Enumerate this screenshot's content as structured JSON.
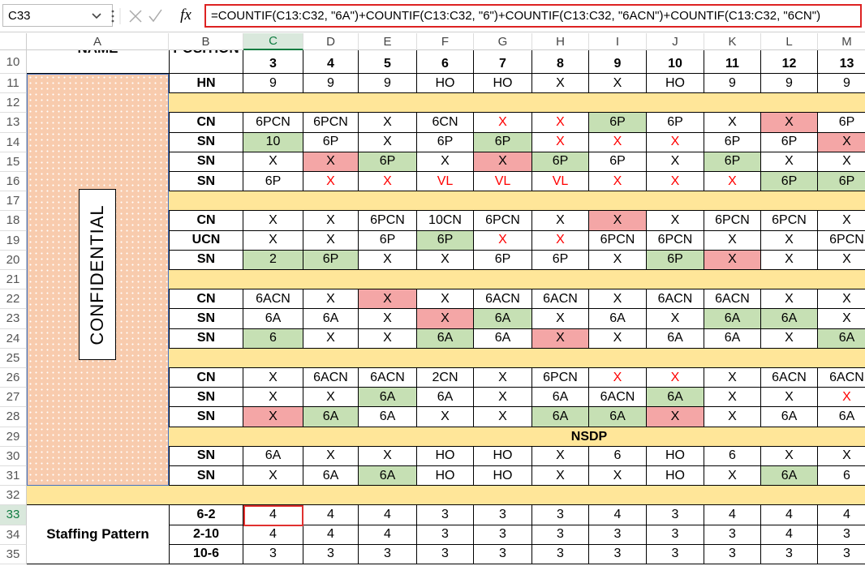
{
  "formula_bar": {
    "name_box": "C33",
    "fx": "fx",
    "formula": "=COUNTIF(C13:C32, \"6A\")+COUNTIF(C13:C32, \"6\")+COUNTIF(C13:C32, \"6ACN\")+COUNTIF(C13:C32, \"6CN\")"
  },
  "column_headers": [
    "A",
    "B",
    "C",
    "D",
    "E",
    "F",
    "G",
    "H",
    "I",
    "J",
    "K",
    "L",
    "M"
  ],
  "colors": {
    "green": "#c6e0b4",
    "red_fill": "#f4a6a6",
    "red_text": "#ff0000",
    "band": "#ffe699",
    "confidential_bg": "#f8cbad",
    "selected": "#e0312f"
  },
  "sheet": {
    "header_row": 10,
    "name_header": "NAME",
    "position_header": "POSITION",
    "day_numbers": [
      3,
      4,
      5,
      6,
      7,
      8,
      9,
      10,
      11,
      12,
      13
    ],
    "confidential": "CONFIDENTIAL",
    "staffing_label": "Staffing Pattern",
    "selected_cell": "C33",
    "rows": [
      {
        "row": 11,
        "position": "HN",
        "cells": [
          "9",
          "9",
          "9",
          "HO",
          "HO",
          "X",
          "X",
          "HO",
          "9",
          "9",
          "9"
        ]
      },
      {
        "row": 12,
        "band": true
      },
      {
        "row": 13,
        "position": "CN",
        "cells": [
          "6PCN",
          "6PCN",
          "X",
          "6CN",
          "X",
          "X",
          "6P",
          "6P",
          "X",
          "X",
          "6P"
        ],
        "green": [
          6
        ],
        "red_fill": [
          9
        ],
        "red_text": [
          4,
          5
        ]
      },
      {
        "row": 14,
        "position": "SN",
        "cells": [
          "10",
          "6P",
          "X",
          "6P",
          "6P",
          "X",
          "X",
          "X",
          "6P",
          "6P",
          "X"
        ],
        "green": [
          0,
          4
        ],
        "red_fill": [
          10
        ],
        "red_text": [
          5,
          6,
          7
        ]
      },
      {
        "row": 15,
        "position": "SN",
        "cells": [
          "X",
          "X",
          "6P",
          "X",
          "X",
          "6P",
          "6P",
          "X",
          "6P",
          "X",
          "X"
        ],
        "green": [
          2,
          5,
          8
        ],
        "red_fill": [
          1,
          4
        ]
      },
      {
        "row": 16,
        "position": "SN",
        "cells": [
          "6P",
          "X",
          "X",
          "VL",
          "VL",
          "VL",
          "X",
          "X",
          "X",
          "6P",
          "6P"
        ],
        "green": [
          9,
          10
        ],
        "red_text": [
          1,
          2,
          3,
          4,
          5,
          6,
          7,
          8
        ]
      },
      {
        "row": 17,
        "band": true
      },
      {
        "row": 18,
        "position": "CN",
        "cells": [
          "X",
          "X",
          "6PCN",
          "10CN",
          "6PCN",
          "X",
          "X",
          "X",
          "6PCN",
          "6PCN",
          "X"
        ],
        "red_fill": [
          6
        ]
      },
      {
        "row": 19,
        "position": "UCN",
        "cells": [
          "X",
          "X",
          "6P",
          "6P",
          "X",
          "X",
          "6PCN",
          "6PCN",
          "X",
          "X",
          "6PCN"
        ],
        "green": [
          3
        ],
        "red_text": [
          4,
          5
        ]
      },
      {
        "row": 20,
        "position": "SN",
        "cells": [
          "2",
          "6P",
          "X",
          "X",
          "6P",
          "6P",
          "X",
          "6P",
          "X",
          "X",
          "X"
        ],
        "green": [
          0,
          1,
          7
        ],
        "red_fill": [
          8
        ]
      },
      {
        "row": 21,
        "band": true
      },
      {
        "row": 22,
        "position": "CN",
        "cells": [
          "6ACN",
          "X",
          "X",
          "X",
          "6ACN",
          "6ACN",
          "X",
          "6ACN",
          "6ACN",
          "X",
          "X"
        ],
        "red_fill": [
          2
        ]
      },
      {
        "row": 23,
        "position": "SN",
        "cells": [
          "6A",
          "6A",
          "X",
          "X",
          "6A",
          "X",
          "6A",
          "X",
          "6A",
          "6A",
          "X"
        ],
        "green": [
          4,
          8,
          9
        ],
        "red_fill": [
          3
        ]
      },
      {
        "row": 24,
        "position": "SN",
        "cells": [
          "6",
          "X",
          "X",
          "6A",
          "6A",
          "X",
          "X",
          "6A",
          "6A",
          "X",
          "6A"
        ],
        "green": [
          0,
          3,
          10
        ],
        "red_fill": [
          5
        ]
      },
      {
        "row": 25,
        "band": true
      },
      {
        "row": 26,
        "position": "CN",
        "cells": [
          "X",
          "6ACN",
          "6ACN",
          "2CN",
          "X",
          "6PCN",
          "X",
          "X",
          "X",
          "6ACN",
          "6ACN"
        ],
        "red_text": [
          6,
          7
        ]
      },
      {
        "row": 27,
        "position": "SN",
        "cells": [
          "X",
          "X",
          "6A",
          "6A",
          "X",
          "6A",
          "6ACN",
          "6A",
          "X",
          "X",
          "X"
        ],
        "green": [
          2,
          7
        ],
        "red_text": [
          10
        ]
      },
      {
        "row": 28,
        "position": "SN",
        "cells": [
          "X",
          "6A",
          "6A",
          "X",
          "X",
          "6A",
          "6A",
          "X",
          "X",
          "6A",
          "6A"
        ],
        "green": [
          1,
          5,
          6
        ],
        "red_fill": [
          0,
          7
        ]
      },
      {
        "row": 29,
        "band": true,
        "note": "NSDP"
      },
      {
        "row": 30,
        "position": "SN",
        "cells": [
          "6A",
          "X",
          "X",
          "HO",
          "HO",
          "X",
          "6",
          "HO",
          "6",
          "X",
          "X"
        ]
      },
      {
        "row": 31,
        "position": "SN",
        "cells": [
          "X",
          "6A",
          "6A",
          "HO",
          "HO",
          "X",
          "X",
          "HO",
          "X",
          "6A",
          "6"
        ],
        "green": [
          2,
          9
        ]
      },
      {
        "row": 32,
        "band": true
      },
      {
        "row": 33,
        "position": "6-2",
        "cells": [
          4,
          4,
          4,
          3,
          3,
          3,
          4,
          3,
          4,
          4,
          4
        ]
      },
      {
        "row": 34,
        "position": "2-10",
        "cells": [
          4,
          4,
          4,
          3,
          3,
          3,
          3,
          3,
          3,
          4,
          3
        ]
      },
      {
        "row": 35,
        "position": "10-6",
        "cells": [
          3,
          3,
          3,
          3,
          3,
          3,
          3,
          3,
          3,
          3,
          3
        ]
      }
    ]
  }
}
